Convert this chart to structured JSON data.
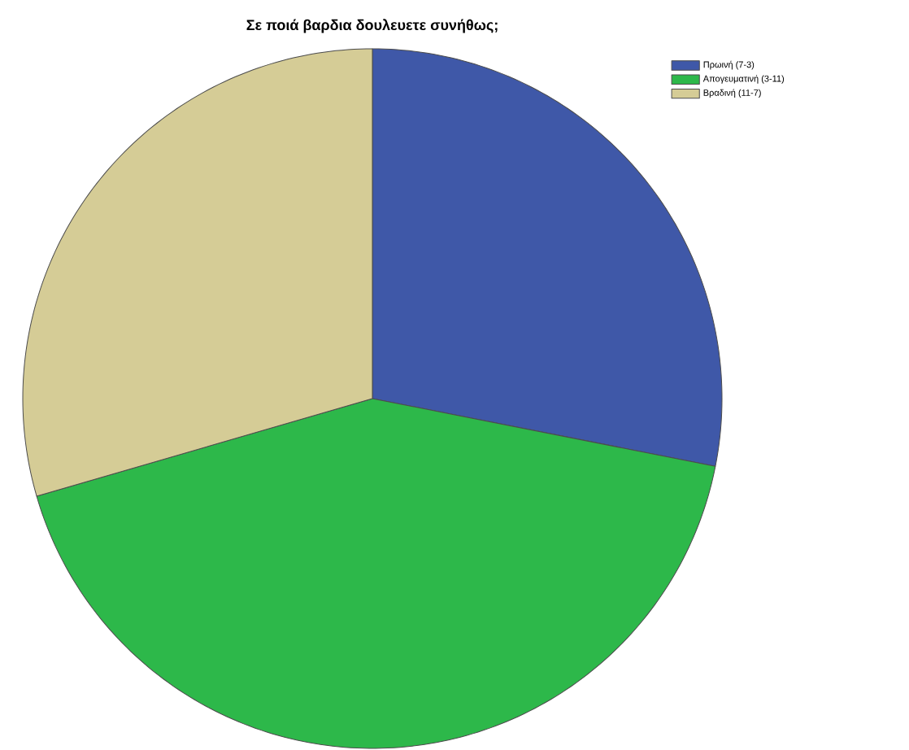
{
  "chart_data": {
    "type": "pie",
    "title": "Σε ποιά βαρδια δουλευετε συνήθως;",
    "categories": [
      "Πρωινή (7-3)",
      "Απογευματινή (3-11)",
      "Βραδινή (11-7)"
    ],
    "values": [
      28.1,
      42.4,
      29.5
    ],
    "colors": [
      "#3f58a8",
      "#2db84a",
      "#d5cc96"
    ],
    "legend": "top right"
  }
}
